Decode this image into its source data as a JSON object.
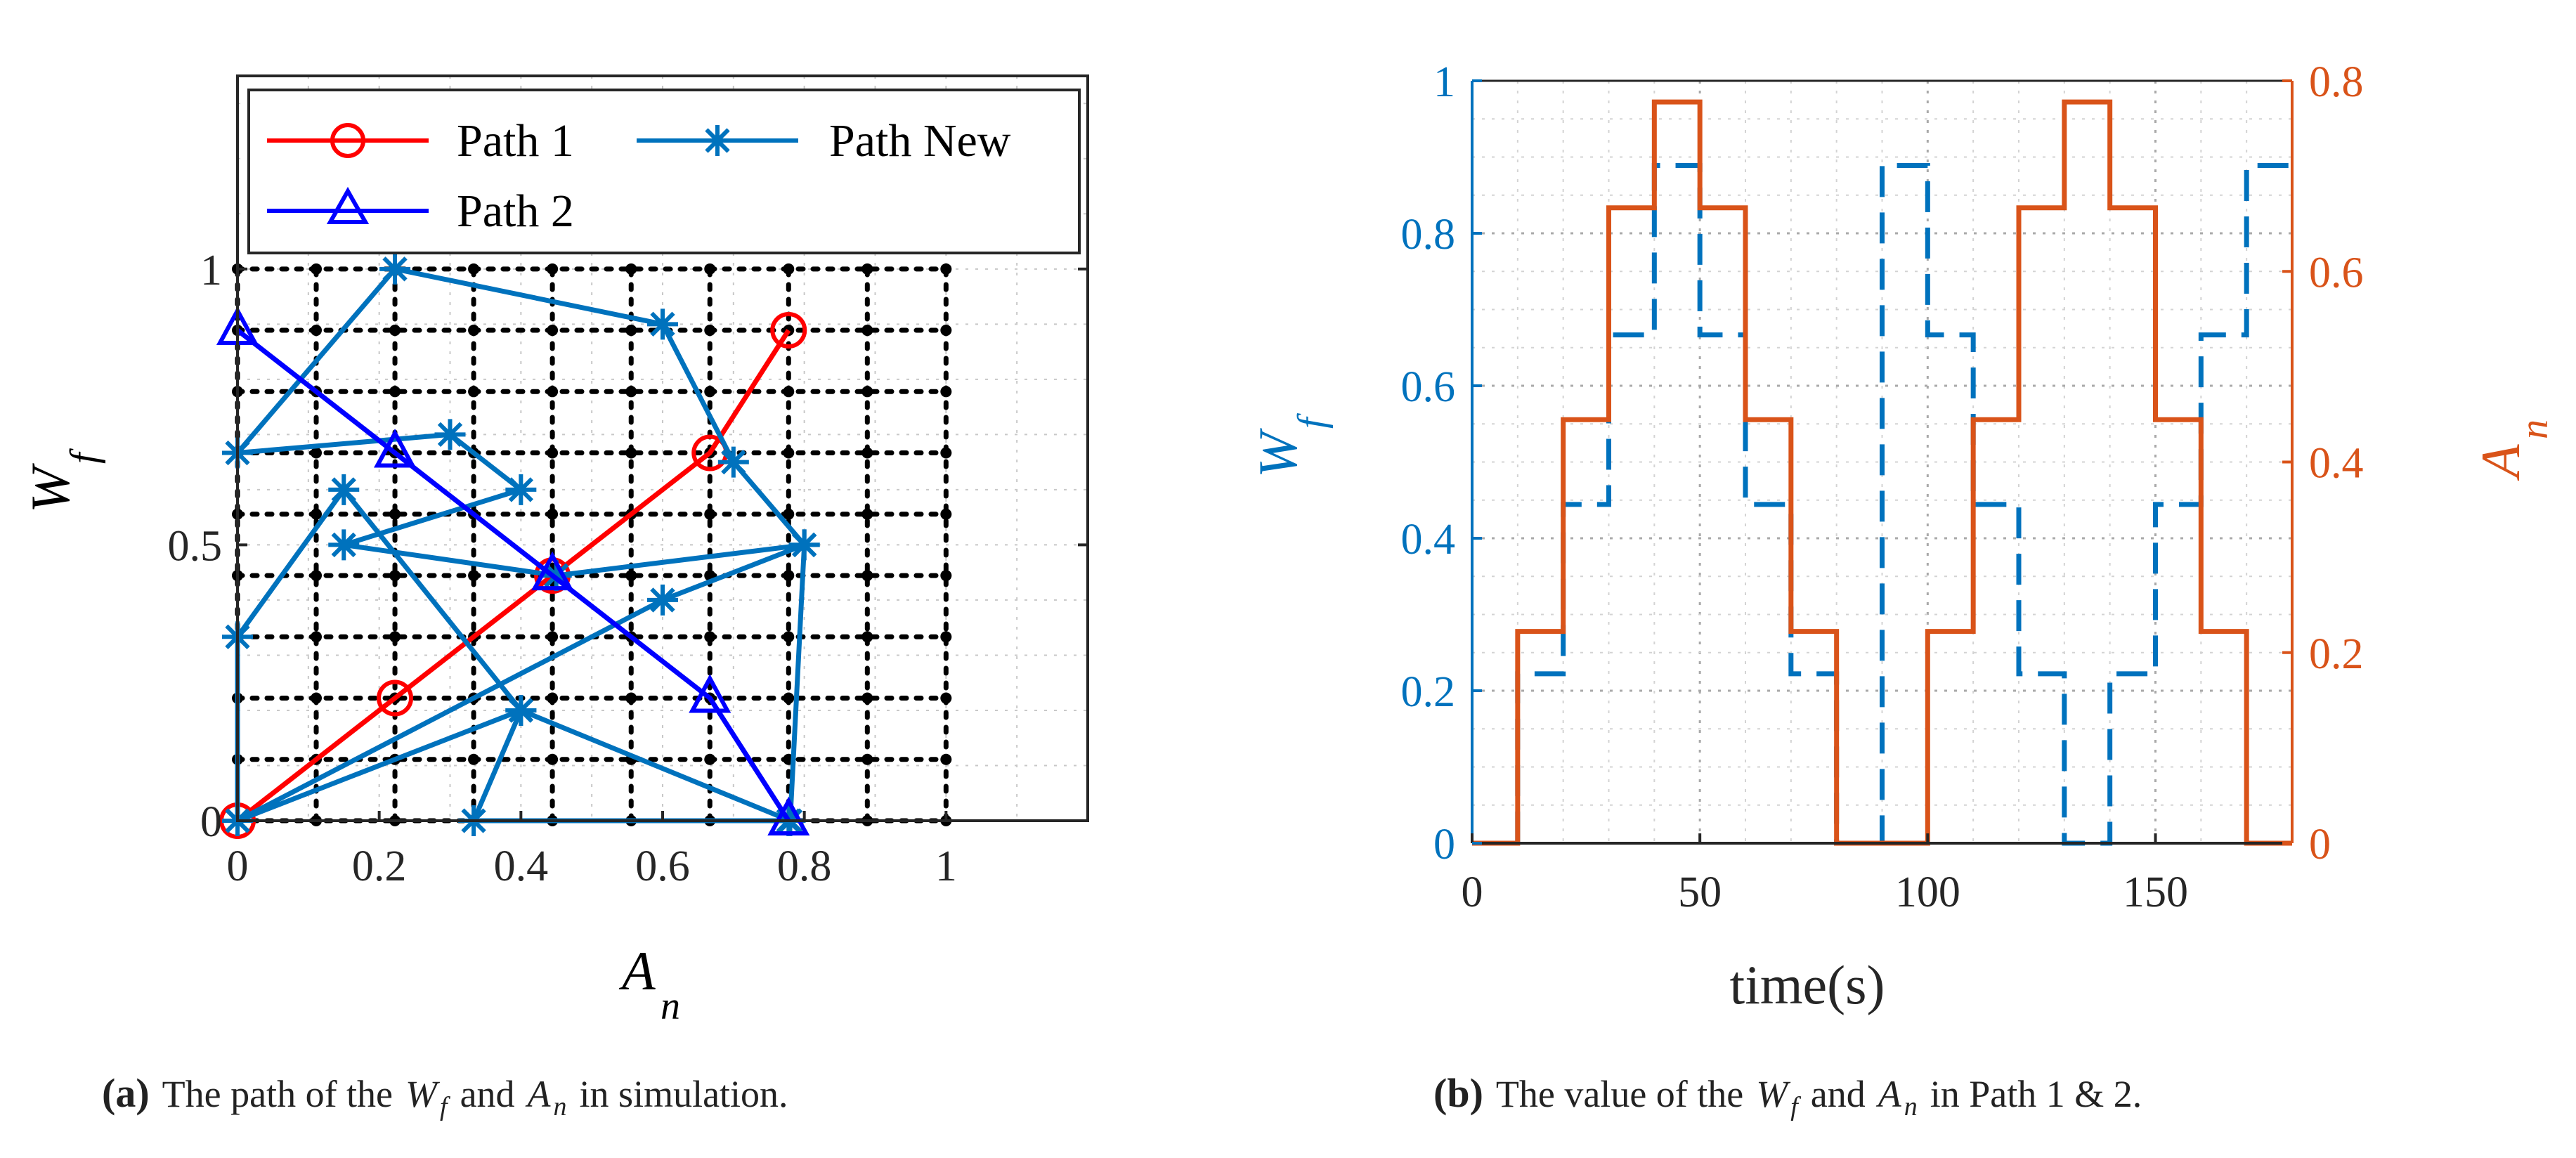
{
  "chart_data": [
    {
      "id": "a",
      "type": "line",
      "xlabel": "A",
      "xlabel_sub": "n",
      "ylabel": "W",
      "ylabel_sub": "f",
      "xlim": [
        0,
        1.2
      ],
      "ylim": [
        0,
        1.35
      ],
      "x_ticks": [
        0,
        0.2,
        0.4,
        0.6,
        0.8,
        1
      ],
      "x_tick_labels": [
        "0",
        "0.2",
        "0.4",
        "0.6",
        "0.8",
        "1"
      ],
      "y_ticks": [
        0,
        0.5,
        1
      ],
      "y_tick_labels": [
        "0",
        "0.5",
        "1"
      ],
      "grid_points": {
        "x": [
          0,
          0.1111,
          0.2222,
          0.3333,
          0.4444,
          0.5556,
          0.6667,
          0.7778,
          0.8889,
          1
        ],
        "y": [
          0,
          0.1111,
          0.2222,
          0.3333,
          0.4444,
          0.5556,
          0.6667,
          0.7778,
          0.8889,
          1
        ]
      },
      "series": [
        {
          "name": "Path 1",
          "color": "#ff0000",
          "marker": "circle",
          "x": [
            0,
            0.2222,
            0.4444,
            0.6667,
            0.7778
          ],
          "y": [
            0,
            0.2222,
            0.4444,
            0.6667,
            0.8889
          ]
        },
        {
          "name": "Path New",
          "color": "#0072bd",
          "marker": "star",
          "x": [
            0.7778,
            0.3333,
            0.4,
            0,
            0.6,
            0.8,
            0.45,
            0.15,
            0.4,
            0.3,
            0,
            0.2222,
            0.6,
            0.7,
            0.8,
            0.78,
            0.4,
            0.15,
            0,
            0
          ],
          "y": [
            0,
            0,
            0.2,
            0,
            0.4,
            0.5,
            0.4444,
            0.5,
            0.6,
            0.7,
            0.6667,
            1.0,
            0.9,
            0.65,
            0.5,
            0,
            0.2,
            0.6,
            0.3333,
            0
          ]
        },
        {
          "name": "Path 2",
          "color": "#0000ff",
          "marker": "triangle",
          "x": [
            0,
            0.2222,
            0.4444,
            0.6667,
            0.7778
          ],
          "y": [
            0.8889,
            0.6667,
            0.4444,
            0.2222,
            0
          ]
        }
      ],
      "legend": {
        "placement": "top",
        "entries": [
          "Path 1",
          "Path New",
          "Path 2"
        ]
      },
      "caption": {
        "label": "(a)",
        "text_1": "The path of the",
        "sym_1": "W",
        "sym_1_sub": "f",
        "text_2": "and",
        "sym_2": "A",
        "sym_2_sub": "n",
        "text_3": "in simulation."
      }
    },
    {
      "id": "b",
      "type": "line",
      "xlabel": "time(s)",
      "ylabel_left": "W",
      "ylabel_left_sub": "f",
      "ylabel_right": "A",
      "ylabel_right_sub": "n",
      "xlim": [
        0,
        180
      ],
      "ylim_left": [
        0,
        1
      ],
      "ylim_right": [
        0,
        0.8
      ],
      "x_ticks": [
        0,
        50,
        100,
        150
      ],
      "x_tick_labels": [
        "0",
        "50",
        "100",
        "150"
      ],
      "y_left_ticks": [
        0,
        0.2,
        0.4,
        0.6,
        0.8,
        1
      ],
      "y_left_tick_labels": [
        "0",
        "0.2",
        "0.4",
        "0.6",
        "0.8",
        "1"
      ],
      "y_right_ticks": [
        0,
        0.2,
        0.4,
        0.6,
        0.8
      ],
      "y_right_tick_labels": [
        "0",
        "0.2",
        "0.4",
        "0.6",
        "0.8"
      ],
      "left_color": "#0072bd",
      "right_color": "#d95319",
      "series": [
        {
          "name": "W_f",
          "axis": "left",
          "style": "dashed",
          "color": "#0072bd",
          "x": [
            0,
            10,
            20,
            30,
            40,
            50,
            60,
            70,
            80,
            90,
            100,
            110,
            120,
            130,
            140,
            150,
            160,
            170
          ],
          "values": [
            0,
            0.2222,
            0.4444,
            0.6667,
            0.8889,
            0.6667,
            0.4444,
            0.2222,
            0,
            0.8889,
            0.6667,
            0.4444,
            0.2222,
            0,
            0.2222,
            0.4444,
            0.6667,
            0.8889
          ]
        },
        {
          "name": "A_n",
          "axis": "right",
          "style": "solid",
          "color": "#d95319",
          "x": [
            0,
            10,
            20,
            30,
            40,
            50,
            60,
            70,
            80,
            90,
            100,
            110,
            120,
            130,
            140,
            150,
            160,
            170
          ],
          "values": [
            0,
            0.2222,
            0.4444,
            0.6667,
            0.7778,
            0.6667,
            0.4444,
            0.2222,
            0,
            0,
            0.2222,
            0.4444,
            0.6667,
            0.7778,
            0.6667,
            0.4444,
            0.2222,
            0
          ]
        }
      ],
      "caption": {
        "label": "(b)",
        "text_1": "The value of the",
        "sym_1": "W",
        "sym_1_sub": "f",
        "text_2": "and",
        "sym_2": "A",
        "sym_2_sub": "n",
        "text_3": "in Path 1 & 2."
      }
    }
  ]
}
